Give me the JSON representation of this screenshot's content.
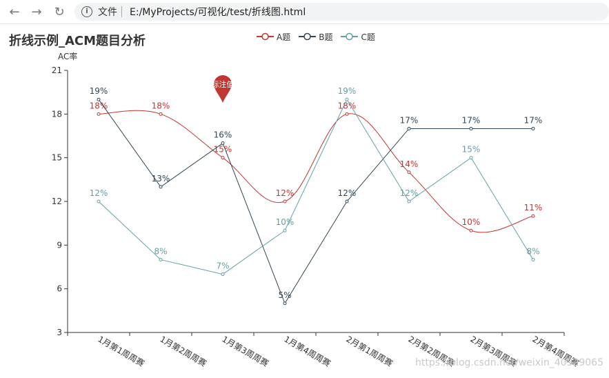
{
  "browser": {
    "file_label": "文件",
    "url": "E:/MyProjects/可视化/test/折线图.html"
  },
  "chart_data": {
    "type": "line",
    "title": "折线示例_ACM题目分析",
    "ylabel": "AC率",
    "ylim": [
      3,
      21
    ],
    "yticks": [
      3,
      6,
      9,
      12,
      15,
      18,
      21
    ],
    "categories": [
      "1月第1周周赛",
      "1月第2周周赛",
      "1月第3周周赛",
      "1月第4周周赛",
      "2月第1周周赛",
      "2月第2周周赛",
      "2月第3周周赛",
      "2月第4周周赛"
    ],
    "series": [
      {
        "name": "A题",
        "color": "#c23531",
        "smooth": true,
        "values": [
          18,
          18,
          15,
          12,
          18,
          14,
          10,
          11
        ]
      },
      {
        "name": "B题",
        "color": "#2f4554",
        "smooth": false,
        "values": [
          19,
          13,
          16,
          5,
          12,
          17,
          17,
          17
        ]
      },
      {
        "name": "C题",
        "color": "#61a0a8",
        "smooth": false,
        "values": [
          12,
          8,
          7,
          10,
          19,
          12,
          15,
          8
        ]
      }
    ],
    "label_suffix": "%",
    "mark_point": {
      "label": "标注值",
      "category_index": 2,
      "value": 19.2
    },
    "grid": false,
    "legend_position": "top-center"
  },
  "watermark": "https://blog.csdn.net/weixin_40929065"
}
